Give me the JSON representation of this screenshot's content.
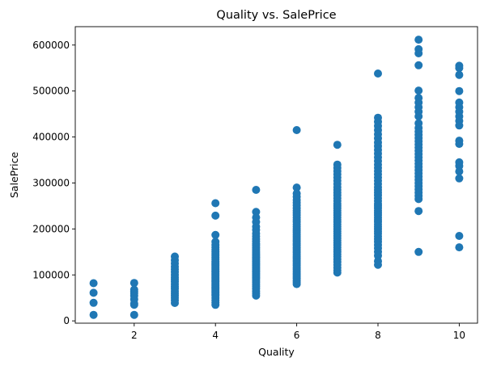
{
  "chart_data": {
    "type": "scatter",
    "title": "Quality vs. SalePrice",
    "xlabel": "Quality",
    "ylabel": "SalePrice",
    "xlim": [
      0.55,
      10.45
    ],
    "ylim": [
      -5000,
      640000
    ],
    "x_ticks": [
      2,
      4,
      6,
      8,
      10
    ],
    "x_tick_labels": [
      "2",
      "4",
      "6",
      "8",
      "10"
    ],
    "y_ticks": [
      0,
      100000,
      200000,
      300000,
      400000,
      500000,
      600000
    ],
    "y_tick_labels": [
      "0",
      "100000",
      "200000",
      "300000",
      "400000",
      "500000",
      "600000"
    ],
    "grid": false,
    "marker_color": "#1f77b4",
    "points": [
      [
        1,
        82000
      ],
      [
        1,
        61000
      ],
      [
        1,
        39300
      ],
      [
        1,
        13100
      ],
      [
        2,
        82500
      ],
      [
        2,
        68000
      ],
      [
        2,
        64000
      ],
      [
        2,
        60000
      ],
      [
        2,
        55000
      ],
      [
        2,
        47000
      ],
      [
        2,
        37900
      ],
      [
        2,
        35000
      ],
      [
        2,
        13100
      ],
      [
        3,
        140000
      ],
      [
        3,
        132000
      ],
      [
        3,
        125000
      ],
      [
        3,
        118000
      ],
      [
        3,
        112000
      ],
      [
        3,
        106000
      ],
      [
        3,
        100000
      ],
      [
        3,
        95000
      ],
      [
        3,
        90000
      ],
      [
        3,
        85000
      ],
      [
        3,
        80000
      ],
      [
        3,
        75000
      ],
      [
        3,
        70000
      ],
      [
        3,
        65000
      ],
      [
        3,
        60000
      ],
      [
        3,
        55000
      ],
      [
        3,
        50000
      ],
      [
        3,
        45000
      ],
      [
        3,
        39000
      ],
      [
        4,
        256000
      ],
      [
        4,
        228950
      ],
      [
        4,
        187000
      ],
      [
        4,
        172000
      ],
      [
        4,
        165000
      ],
      [
        4,
        160000
      ],
      [
        4,
        155000
      ],
      [
        4,
        150000
      ],
      [
        4,
        146000
      ],
      [
        4,
        142000
      ],
      [
        4,
        138000
      ],
      [
        4,
        134000
      ],
      [
        4,
        130000
      ],
      [
        4,
        127000
      ],
      [
        4,
        124000
      ],
      [
        4,
        121000
      ],
      [
        4,
        118000
      ],
      [
        4,
        115000
      ],
      [
        4,
        112000
      ],
      [
        4,
        109000
      ],
      [
        4,
        106000
      ],
      [
        4,
        103000
      ],
      [
        4,
        100000
      ],
      [
        4,
        97000
      ],
      [
        4,
        94000
      ],
      [
        4,
        91000
      ],
      [
        4,
        88000
      ],
      [
        4,
        85000
      ],
      [
        4,
        82000
      ],
      [
        4,
        79000
      ],
      [
        4,
        76000
      ],
      [
        4,
        73000
      ],
      [
        4,
        70000
      ],
      [
        4,
        67000
      ],
      [
        4,
        64000
      ],
      [
        4,
        61000
      ],
      [
        4,
        58000
      ],
      [
        4,
        55000
      ],
      [
        4,
        50000
      ],
      [
        4,
        45000
      ],
      [
        4,
        40000
      ],
      [
        4,
        34900
      ],
      [
        5,
        285000
      ],
      [
        5,
        237000
      ],
      [
        5,
        225000
      ],
      [
        5,
        215000
      ],
      [
        5,
        205000
      ],
      [
        5,
        198000
      ],
      [
        5,
        190000
      ],
      [
        5,
        184000
      ],
      [
        5,
        178000
      ],
      [
        5,
        173000
      ],
      [
        5,
        168000
      ],
      [
        5,
        164000
      ],
      [
        5,
        160000
      ],
      [
        5,
        156000
      ],
      [
        5,
        152000
      ],
      [
        5,
        148000
      ],
      [
        5,
        145000
      ],
      [
        5,
        142000
      ],
      [
        5,
        139000
      ],
      [
        5,
        136000
      ],
      [
        5,
        133000
      ],
      [
        5,
        130000
      ],
      [
        5,
        127000
      ],
      [
        5,
        124000
      ],
      [
        5,
        121000
      ],
      [
        5,
        118000
      ],
      [
        5,
        115000
      ],
      [
        5,
        112000
      ],
      [
        5,
        109000
      ],
      [
        5,
        106000
      ],
      [
        5,
        103000
      ],
      [
        5,
        100000
      ],
      [
        5,
        97000
      ],
      [
        5,
        94000
      ],
      [
        5,
        91000
      ],
      [
        5,
        87000
      ],
      [
        5,
        83000
      ],
      [
        5,
        79000
      ],
      [
        5,
        75000
      ],
      [
        5,
        70000
      ],
      [
        5,
        65000
      ],
      [
        5,
        60000
      ],
      [
        5,
        55000
      ],
      [
        6,
        415000
      ],
      [
        6,
        290000
      ],
      [
        6,
        277000
      ],
      [
        6,
        270000
      ],
      [
        6,
        263000
      ],
      [
        6,
        257000
      ],
      [
        6,
        251000
      ],
      [
        6,
        245000
      ],
      [
        6,
        240000
      ],
      [
        6,
        235000
      ],
      [
        6,
        230000
      ],
      [
        6,
        225000
      ],
      [
        6,
        220000
      ],
      [
        6,
        215000
      ],
      [
        6,
        210000
      ],
      [
        6,
        205000
      ],
      [
        6,
        200000
      ],
      [
        6,
        196000
      ],
      [
        6,
        192000
      ],
      [
        6,
        188000
      ],
      [
        6,
        184000
      ],
      [
        6,
        180000
      ],
      [
        6,
        176000
      ],
      [
        6,
        172000
      ],
      [
        6,
        168000
      ],
      [
        6,
        164000
      ],
      [
        6,
        160000
      ],
      [
        6,
        156000
      ],
      [
        6,
        152000
      ],
      [
        6,
        148000
      ],
      [
        6,
        144000
      ],
      [
        6,
        140000
      ],
      [
        6,
        136000
      ],
      [
        6,
        132000
      ],
      [
        6,
        128000
      ],
      [
        6,
        124000
      ],
      [
        6,
        120000
      ],
      [
        6,
        116000
      ],
      [
        6,
        112000
      ],
      [
        6,
        108000
      ],
      [
        6,
        104000
      ],
      [
        6,
        100000
      ],
      [
        6,
        96000
      ],
      [
        6,
        92000
      ],
      [
        6,
        88000
      ],
      [
        6,
        84000
      ],
      [
        6,
        80000
      ],
      [
        7,
        383000
      ],
      [
        7,
        340000
      ],
      [
        7,
        333000
      ],
      [
        7,
        326000
      ],
      [
        7,
        319000
      ],
      [
        7,
        312000
      ],
      [
        7,
        305000
      ],
      [
        7,
        298000
      ],
      [
        7,
        291000
      ],
      [
        7,
        285000
      ],
      [
        7,
        279000
      ],
      [
        7,
        273000
      ],
      [
        7,
        267000
      ],
      [
        7,
        261000
      ],
      [
        7,
        255000
      ],
      [
        7,
        250000
      ],
      [
        7,
        245000
      ],
      [
        7,
        240000
      ],
      [
        7,
        235000
      ],
      [
        7,
        230000
      ],
      [
        7,
        225000
      ],
      [
        7,
        220000
      ],
      [
        7,
        215000
      ],
      [
        7,
        210000
      ],
      [
        7,
        205000
      ],
      [
        7,
        200000
      ],
      [
        7,
        195000
      ],
      [
        7,
        190000
      ],
      [
        7,
        185000
      ],
      [
        7,
        180000
      ],
      [
        7,
        175000
      ],
      [
        7,
        170000
      ],
      [
        7,
        165000
      ],
      [
        7,
        160000
      ],
      [
        7,
        155000
      ],
      [
        7,
        150000
      ],
      [
        7,
        145000
      ],
      [
        7,
        140000
      ],
      [
        7,
        134000
      ],
      [
        7,
        128000
      ],
      [
        7,
        122000
      ],
      [
        7,
        116000
      ],
      [
        7,
        110000
      ],
      [
        7,
        105000
      ],
      [
        8,
        538000
      ],
      [
        8,
        442000
      ],
      [
        8,
        433000
      ],
      [
        8,
        424000
      ],
      [
        8,
        415000
      ],
      [
        8,
        406000
      ],
      [
        8,
        397000
      ],
      [
        8,
        388000
      ],
      [
        8,
        380000
      ],
      [
        8,
        372000
      ],
      [
        8,
        364000
      ],
      [
        8,
        356000
      ],
      [
        8,
        348000
      ],
      [
        8,
        340000
      ],
      [
        8,
        333000
      ],
      [
        8,
        326000
      ],
      [
        8,
        319000
      ],
      [
        8,
        312000
      ],
      [
        8,
        305000
      ],
      [
        8,
        298000
      ],
      [
        8,
        291000
      ],
      [
        8,
        285000
      ],
      [
        8,
        279000
      ],
      [
        8,
        273000
      ],
      [
        8,
        267000
      ],
      [
        8,
        261000
      ],
      [
        8,
        255000
      ],
      [
        8,
        250000
      ],
      [
        8,
        245000
      ],
      [
        8,
        240000
      ],
      [
        8,
        235000
      ],
      [
        8,
        230000
      ],
      [
        8,
        225000
      ],
      [
        8,
        220000
      ],
      [
        8,
        215000
      ],
      [
        8,
        210000
      ],
      [
        8,
        205000
      ],
      [
        8,
        200000
      ],
      [
        8,
        195000
      ],
      [
        8,
        190000
      ],
      [
        8,
        184000
      ],
      [
        8,
        178000
      ],
      [
        8,
        172000
      ],
      [
        8,
        165000
      ],
      [
        8,
        158000
      ],
      [
        8,
        150000
      ],
      [
        8,
        142000
      ],
      [
        8,
        130000
      ],
      [
        8,
        122000
      ],
      [
        9,
        611657
      ],
      [
        9,
        591000
      ],
      [
        9,
        582000
      ],
      [
        9,
        556000
      ],
      [
        9,
        501000
      ],
      [
        9,
        485000
      ],
      [
        9,
        475000
      ],
      [
        9,
        465000
      ],
      [
        9,
        455000
      ],
      [
        9,
        445000
      ],
      [
        9,
        430000
      ],
      [
        9,
        420000
      ],
      [
        9,
        412000
      ],
      [
        9,
        405000
      ],
      [
        9,
        398000
      ],
      [
        9,
        391000
      ],
      [
        9,
        384000
      ],
      [
        9,
        377000
      ],
      [
        9,
        370000
      ],
      [
        9,
        363000
      ],
      [
        9,
        356000
      ],
      [
        9,
        349000
      ],
      [
        9,
        342000
      ],
      [
        9,
        335000
      ],
      [
        9,
        328000
      ],
      [
        9,
        321000
      ],
      [
        9,
        314000
      ],
      [
        9,
        307000
      ],
      [
        9,
        300000
      ],
      [
        9,
        293000
      ],
      [
        9,
        286000
      ],
      [
        9,
        279000
      ],
      [
        9,
        272000
      ],
      [
        9,
        265000
      ],
      [
        9,
        239000
      ],
      [
        9,
        150000
      ],
      [
        10,
        555000
      ],
      [
        10,
        550000
      ],
      [
        10,
        535000
      ],
      [
        10,
        500000
      ],
      [
        10,
        475000
      ],
      [
        10,
        465000
      ],
      [
        10,
        455000
      ],
      [
        10,
        445000
      ],
      [
        10,
        435000
      ],
      [
        10,
        425000
      ],
      [
        10,
        392000
      ],
      [
        10,
        385000
      ],
      [
        10,
        345000
      ],
      [
        10,
        337000
      ],
      [
        10,
        325000
      ],
      [
        10,
        310000
      ],
      [
        10,
        184750
      ],
      [
        10,
        160000
      ]
    ]
  }
}
